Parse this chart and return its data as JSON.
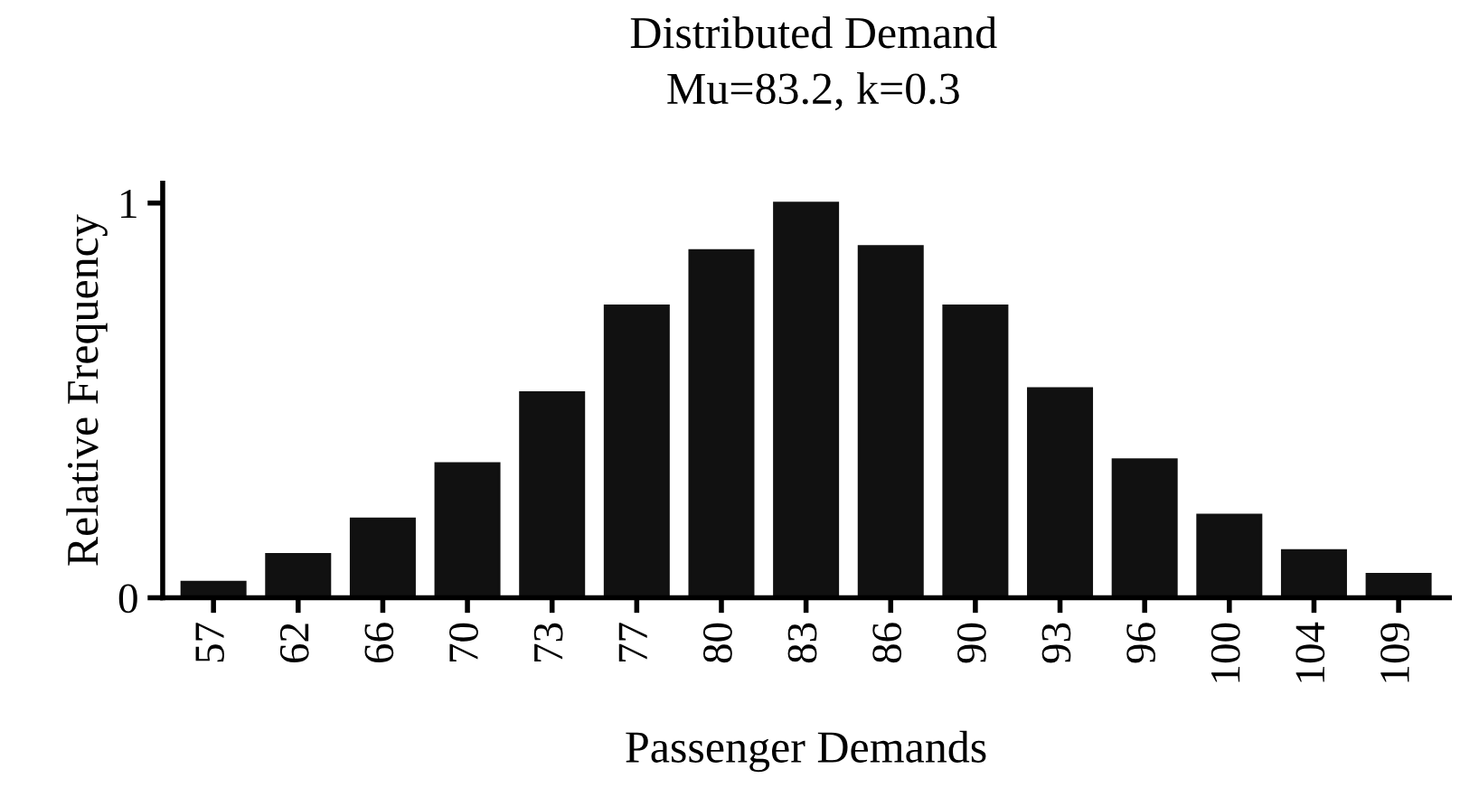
{
  "chart_data": {
    "type": "bar",
    "title": "Distributed Demand",
    "subtitle": "Mu=83.2, k=0.3",
    "xlabel": "Passenger Demands",
    "ylabel": "Relative Frequency",
    "categories": [
      "57",
      "62",
      "66",
      "70",
      "73",
      "77",
      "80",
      "83",
      "86",
      "90",
      "93",
      "96",
      "100",
      "104",
      "109"
    ],
    "values": [
      0.04,
      0.11,
      0.2,
      0.34,
      0.52,
      0.74,
      0.88,
      1.0,
      0.89,
      0.74,
      0.53,
      0.35,
      0.21,
      0.12,
      0.06
    ],
    "color": "#111111",
    "ylim": [
      0,
      1.05
    ],
    "yticks": [
      0,
      1
    ],
    "grid": false,
    "legend": false
  }
}
